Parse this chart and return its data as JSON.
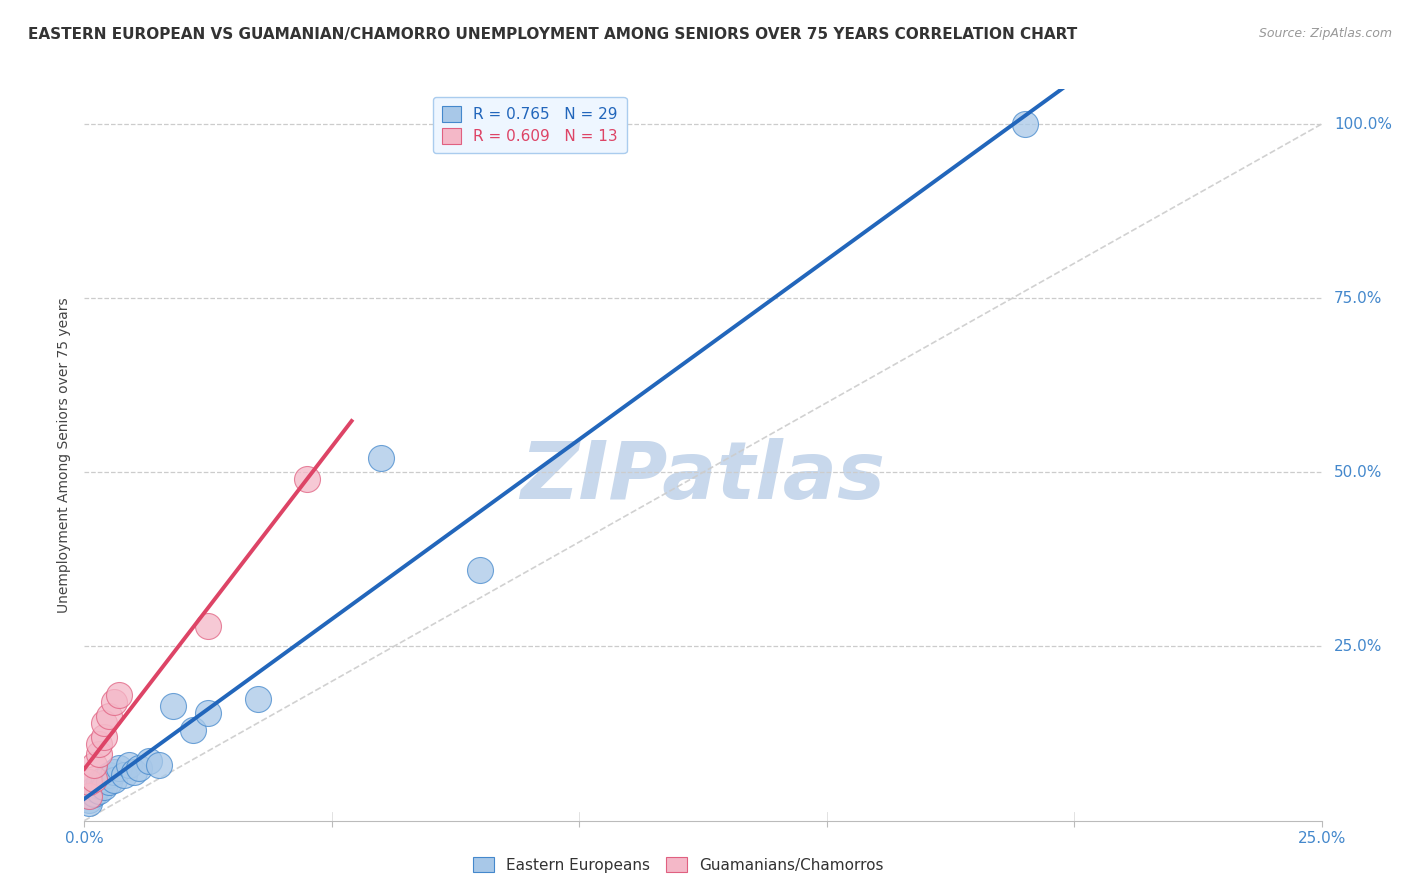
{
  "title": "EASTERN EUROPEAN VS GUAMANIAN/CHAMORRO UNEMPLOYMENT AMONG SENIORS OVER 75 YEARS CORRELATION CHART",
  "source": "Source: ZipAtlas.com",
  "ylabel": "Unemployment Among Seniors over 75 years",
  "xlim": [
    0.0,
    0.25
  ],
  "ylim": [
    0.0,
    1.05
  ],
  "xticks": [
    0.0,
    0.05,
    0.1,
    0.15,
    0.2,
    0.25
  ],
  "yticks": [
    0.0,
    0.25,
    0.5,
    0.75,
    1.0
  ],
  "xticklabels_show": [
    "0.0%",
    "25.0%"
  ],
  "xticklabels_pos": [
    0.0,
    0.25
  ],
  "yticklabels": [
    "25.0%",
    "50.0%",
    "75.0%",
    "100.0%"
  ],
  "ytick_pos": [
    0.25,
    0.5,
    0.75,
    1.0
  ],
  "blue_R": 0.765,
  "blue_N": 29,
  "pink_R": 0.609,
  "pink_N": 13,
  "blue_color": "#A8C8E8",
  "pink_color": "#F4B8C8",
  "blue_edge_color": "#4488CC",
  "pink_edge_color": "#E06080",
  "blue_line_color": "#2266BB",
  "pink_line_color": "#DD4466",
  "blue_scatter_x": [
    0.001,
    0.001,
    0.001,
    0.002,
    0.002,
    0.002,
    0.003,
    0.003,
    0.003,
    0.004,
    0.004,
    0.005,
    0.005,
    0.006,
    0.006,
    0.007,
    0.008,
    0.009,
    0.01,
    0.011,
    0.013,
    0.015,
    0.018,
    0.022,
    0.025,
    0.035,
    0.06,
    0.08,
    0.19
  ],
  "blue_scatter_y": [
    0.03,
    0.035,
    0.025,
    0.04,
    0.045,
    0.038,
    0.05,
    0.055,
    0.042,
    0.06,
    0.048,
    0.065,
    0.055,
    0.07,
    0.058,
    0.075,
    0.065,
    0.08,
    0.07,
    0.075,
    0.085,
    0.08,
    0.165,
    0.13,
    0.155,
    0.175,
    0.52,
    0.36,
    1.0
  ],
  "pink_scatter_x": [
    0.001,
    0.001,
    0.002,
    0.002,
    0.003,
    0.003,
    0.004,
    0.004,
    0.005,
    0.006,
    0.007,
    0.025,
    0.045
  ],
  "pink_scatter_y": [
    0.035,
    0.055,
    0.06,
    0.08,
    0.095,
    0.11,
    0.12,
    0.14,
    0.15,
    0.17,
    0.18,
    0.28,
    0.49
  ],
  "background_color": "#FFFFFF",
  "watermark_text": "ZIPatlas",
  "watermark_color": "#C8D8EC",
  "legend_labels": [
    "Eastern Europeans",
    "Guamanians/Chamorros"
  ],
  "diag_color": "#CCCCCC",
  "title_fontsize": 11,
  "tick_fontsize": 11,
  "tick_color": "#4488CC"
}
